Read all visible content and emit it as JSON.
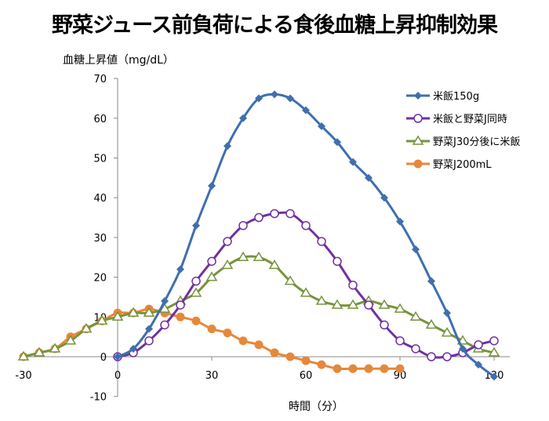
{
  "chart_data": {
    "type": "line",
    "title": "野菜ジュース前負荷による食後血糖上昇抑制効果",
    "xlabel": "時間（分）",
    "ylabel": "血糖上昇値（mg/dL）",
    "xlim": [
      -30,
      120
    ],
    "ylim": [
      -10,
      70
    ],
    "xticks": [
      -30,
      0,
      30,
      60,
      90,
      120
    ],
    "yticks": [
      -10,
      0,
      10,
      20,
      30,
      40,
      50,
      60,
      70
    ],
    "grid": false,
    "legend": "top-right",
    "series": [
      {
        "name": "米飯150g",
        "color": "#3F6FAE",
        "marker": "diamond",
        "x": [
          0,
          5,
          10,
          15,
          20,
          25,
          30,
          35,
          40,
          45,
          50,
          55,
          60,
          65,
          70,
          75,
          80,
          85,
          90,
          95,
          100,
          105,
          110,
          115,
          120
        ],
        "y": [
          0,
          2,
          7,
          14,
          22,
          33,
          43,
          53,
          60,
          65,
          66,
          65,
          62,
          58,
          54,
          49,
          45,
          40,
          34,
          27,
          19,
          11,
          2,
          -2,
          -5
        ]
      },
      {
        "name": "米飯と野菜J同時",
        "color": "#7030A0",
        "marker": "open-circle",
        "x": [
          0,
          5,
          10,
          15,
          20,
          25,
          30,
          35,
          40,
          45,
          50,
          55,
          60,
          65,
          70,
          75,
          80,
          85,
          90,
          95,
          100,
          105,
          110,
          115,
          120
        ],
        "y": [
          0,
          1,
          4,
          8,
          13,
          19,
          24,
          29,
          33,
          35,
          36,
          36,
          33,
          29,
          24,
          18,
          13,
          8,
          4,
          2,
          0,
          0,
          1,
          3,
          4
        ]
      },
      {
        "name": "野菜J30分後に米飯",
        "color": "#77933C",
        "marker": "open-triangle",
        "x": [
          -30,
          -25,
          -20,
          -15,
          -10,
          -5,
          0,
          5,
          10,
          15,
          20,
          25,
          30,
          35,
          40,
          45,
          50,
          55,
          60,
          65,
          70,
          75,
          80,
          85,
          90,
          95,
          100,
          105,
          110,
          115,
          120
        ],
        "y": [
          0,
          1,
          2,
          4,
          7,
          9,
          10,
          11,
          11,
          12,
          14,
          16,
          20,
          23,
          25,
          25,
          23,
          19,
          16,
          14,
          13,
          13,
          14,
          13,
          12,
          10,
          8,
          6,
          4,
          2,
          1
        ]
      },
      {
        "name": "野菜J200mL",
        "color": "#E6883A",
        "marker": "circle",
        "x": [
          -30,
          -25,
          -20,
          -15,
          -10,
          -5,
          0,
          5,
          10,
          15,
          20,
          25,
          30,
          35,
          40,
          45,
          50,
          55,
          60,
          65,
          70,
          75,
          80,
          85,
          90
        ],
        "y": [
          0,
          1,
          2,
          5,
          7,
          9,
          11,
          11,
          12,
          11,
          10,
          9,
          7,
          6,
          4,
          3,
          1,
          0,
          -1,
          -2,
          -3,
          -3,
          -3,
          -3,
          -3
        ]
      }
    ]
  }
}
